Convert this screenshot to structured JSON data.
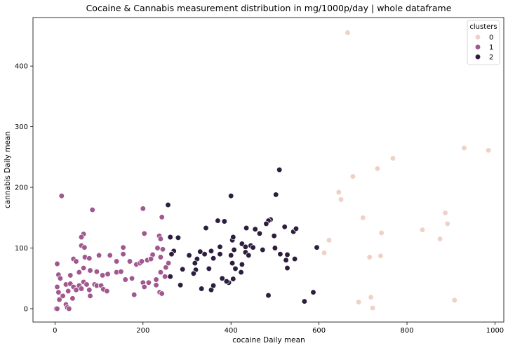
{
  "chart_data": {
    "type": "scatter",
    "title": "Cocaine & Cannabis measurement distribution in mg/1000p/day | whole dataframe",
    "xlabel": "cocaine Daily mean",
    "ylabel": "cannabis Daily mean",
    "xlim": [
      -50,
      1020
    ],
    "ylim": [
      -22,
      480
    ],
    "xticks": [
      0,
      200,
      400,
      600,
      800,
      1000
    ],
    "yticks": [
      0,
      100,
      200,
      300,
      400
    ],
    "grid": false,
    "legend": {
      "title": "clusters",
      "placement": "top-right"
    },
    "series": [
      {
        "name": "0",
        "color": "#efd1c6",
        "points": [
          [
            665,
            455
          ],
          [
            930,
            265
          ],
          [
            985,
            261
          ],
          [
            768,
            248
          ],
          [
            733,
            231
          ],
          [
            677,
            218
          ],
          [
            645,
            192
          ],
          [
            650,
            180
          ],
          [
            700,
            150
          ],
          [
            887,
            158
          ],
          [
            892,
            140
          ],
          [
            835,
            130
          ],
          [
            742,
            125
          ],
          [
            875,
            115
          ],
          [
            623,
            113
          ],
          [
            612,
            92
          ],
          [
            715,
            85
          ],
          [
            740,
            87
          ],
          [
            718,
            19
          ],
          [
            690,
            11
          ],
          [
            722,
            1
          ],
          [
            908,
            14
          ]
        ]
      },
      {
        "name": "1",
        "color": "#a0588f",
        "points": [
          [
            15,
            186
          ],
          [
            85,
            163
          ],
          [
            200,
            165
          ],
          [
            243,
            151
          ],
          [
            65,
            123
          ],
          [
            60,
            118
          ],
          [
            203,
            124
          ],
          [
            237,
            120
          ],
          [
            240,
            115
          ],
          [
            60,
            104
          ],
          [
            67,
            101
          ],
          [
            155,
            101
          ],
          [
            5,
            74
          ],
          [
            42,
            82
          ],
          [
            48,
            78
          ],
          [
            68,
            85
          ],
          [
            78,
            83
          ],
          [
            100,
            88
          ],
          [
            125,
            88
          ],
          [
            140,
            78
          ],
          [
            155,
            90
          ],
          [
            170,
            78
          ],
          [
            185,
            73
          ],
          [
            193,
            75
          ],
          [
            197,
            78
          ],
          [
            210,
            80
          ],
          [
            222,
            89
          ],
          [
            218,
            82
          ],
          [
            233,
            100
          ],
          [
            240,
            85
          ],
          [
            245,
            98
          ],
          [
            252,
            68
          ],
          [
            258,
            75
          ],
          [
            8,
            56
          ],
          [
            12,
            50
          ],
          [
            35,
            55
          ],
          [
            55,
            60
          ],
          [
            65,
            67
          ],
          [
            80,
            63
          ],
          [
            95,
            61
          ],
          [
            108,
            55
          ],
          [
            120,
            57
          ],
          [
            140,
            60
          ],
          [
            150,
            61
          ],
          [
            160,
            48
          ],
          [
            175,
            50
          ],
          [
            200,
            43
          ],
          [
            230,
            48
          ],
          [
            240,
            60
          ],
          [
            250,
            53
          ],
          [
            5,
            36
          ],
          [
            8,
            27
          ],
          [
            10,
            15
          ],
          [
            18,
            21
          ],
          [
            25,
            40
          ],
          [
            30,
            29
          ],
          [
            35,
            41
          ],
          [
            42,
            36
          ],
          [
            48,
            31
          ],
          [
            55,
            38
          ],
          [
            60,
            33
          ],
          [
            65,
            44
          ],
          [
            72,
            40
          ],
          [
            78,
            31
          ],
          [
            90,
            40
          ],
          [
            95,
            38
          ],
          [
            105,
            38
          ],
          [
            110,
            32
          ],
          [
            118,
            29
          ],
          [
            180,
            23
          ],
          [
            203,
            36
          ],
          [
            213,
            43
          ],
          [
            230,
            39
          ],
          [
            238,
            27
          ],
          [
            243,
            25
          ],
          [
            3,
            0
          ],
          [
            5,
            0
          ],
          [
            25,
            7
          ],
          [
            28,
            2
          ],
          [
            32,
            0
          ],
          [
            40,
            17
          ],
          [
            80,
            21
          ]
        ]
      },
      {
        "name": "2",
        "color": "#2d1e3e",
        "points": [
          [
            510,
            229
          ],
          [
            257,
            171
          ],
          [
            400,
            186
          ],
          [
            502,
            188
          ],
          [
            490,
            147
          ],
          [
            485,
            145
          ],
          [
            480,
            140
          ],
          [
            455,
            131
          ],
          [
            435,
            133
          ],
          [
            385,
            144
          ],
          [
            343,
            133
          ],
          [
            370,
            145
          ],
          [
            403,
            113
          ],
          [
            405,
            118
          ],
          [
            425,
            107
          ],
          [
            433,
            102
          ],
          [
            445,
            104
          ],
          [
            522,
            135
          ],
          [
            542,
            127
          ],
          [
            548,
            132
          ],
          [
            262,
            118
          ],
          [
            280,
            117
          ],
          [
            450,
            101
          ],
          [
            465,
            124
          ],
          [
            498,
            120
          ],
          [
            500,
            100
          ],
          [
            472,
            97
          ],
          [
            407,
            97
          ],
          [
            400,
            88
          ],
          [
            403,
            75
          ],
          [
            410,
            66
          ],
          [
            375,
            102
          ],
          [
            355,
            95
          ],
          [
            340,
            90
          ],
          [
            330,
            94
          ],
          [
            323,
            82
          ],
          [
            318,
            75
          ],
          [
            305,
            88
          ],
          [
            270,
            95
          ],
          [
            265,
            90
          ],
          [
            290,
            65
          ],
          [
            320,
            64
          ],
          [
            375,
            90
          ],
          [
            360,
            83
          ],
          [
            350,
            66
          ],
          [
            380,
            50
          ],
          [
            395,
            43
          ],
          [
            425,
            73
          ],
          [
            433,
            93
          ],
          [
            440,
            88
          ],
          [
            423,
            60
          ],
          [
            512,
            90
          ],
          [
            528,
            89
          ],
          [
            525,
            80
          ],
          [
            528,
            67
          ],
          [
            545,
            82
          ],
          [
            595,
            101
          ],
          [
            390,
            45
          ],
          [
            405,
            49
          ],
          [
            315,
            58
          ],
          [
            262,
            53
          ],
          [
            285,
            39
          ],
          [
            333,
            33
          ],
          [
            355,
            31
          ],
          [
            360,
            38
          ],
          [
            485,
            22
          ],
          [
            587,
            27
          ],
          [
            567,
            12
          ]
        ]
      }
    ]
  }
}
